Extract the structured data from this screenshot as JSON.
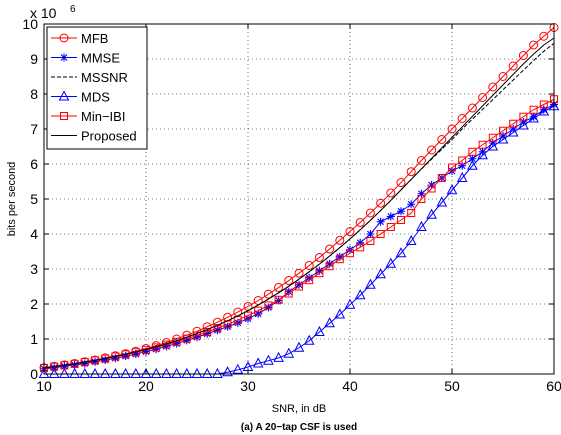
{
  "chart_data": {
    "type": "line",
    "caption": "(a) A 20−tap CSF is used",
    "xlabel": "SNR, in dB",
    "ylabel": "bits per second",
    "y_exponent_label": "x 10",
    "y_exponent": "6",
    "xlim": [
      10,
      60
    ],
    "ylim": [
      0,
      10
    ],
    "x_ticks": [
      10,
      20,
      30,
      40,
      50,
      60
    ],
    "y_ticks": [
      0,
      1,
      2,
      3,
      4,
      5,
      6,
      7,
      8,
      9,
      10
    ],
    "grid": true,
    "legend_position": "top-left",
    "x": [
      10,
      11,
      12,
      13,
      14,
      15,
      16,
      17,
      18,
      19,
      20,
      21,
      22,
      23,
      24,
      25,
      26,
      27,
      28,
      29,
      30,
      31,
      32,
      33,
      34,
      35,
      36,
      37,
      38,
      39,
      40,
      41,
      42,
      43,
      44,
      45,
      46,
      47,
      48,
      49,
      50,
      51,
      52,
      53,
      54,
      55,
      56,
      57,
      58,
      59,
      60
    ],
    "series": [
      {
        "name": "MFB",
        "color": "#ff0000",
        "marker": "circle",
        "dash": "solid",
        "values": [
          0.18,
          0.22,
          0.26,
          0.3,
          0.35,
          0.4,
          0.46,
          0.52,
          0.58,
          0.65,
          0.73,
          0.81,
          0.9,
          1.0,
          1.11,
          1.22,
          1.35,
          1.48,
          1.62,
          1.77,
          1.93,
          2.1,
          2.28,
          2.47,
          2.67,
          2.88,
          3.1,
          3.33,
          3.57,
          3.82,
          4.07,
          4.33,
          4.6,
          4.88,
          5.17,
          5.47,
          5.78,
          6.1,
          6.4,
          6.7,
          7.0,
          7.3,
          7.6,
          7.9,
          8.2,
          8.5,
          8.8,
          9.1,
          9.4,
          9.65,
          9.9
        ]
      },
      {
        "name": "MMSE",
        "color": "#0000ff",
        "marker": "star",
        "dash": "solid",
        "values": [
          0.15,
          0.18,
          0.22,
          0.26,
          0.3,
          0.35,
          0.4,
          0.45,
          0.51,
          0.57,
          0.64,
          0.71,
          0.79,
          0.87,
          0.96,
          1.05,
          1.15,
          1.25,
          1.35,
          1.46,
          1.58,
          1.72,
          1.9,
          2.1,
          2.35,
          2.55,
          2.75,
          2.95,
          3.15,
          3.35,
          3.55,
          3.75,
          4.0,
          4.35,
          4.5,
          4.65,
          4.85,
          5.15,
          5.4,
          5.6,
          5.8,
          5.95,
          6.15,
          6.35,
          6.6,
          6.8,
          7.0,
          7.2,
          7.35,
          7.55,
          7.7
        ]
      },
      {
        "name": "MSSNR",
        "color": "#000000",
        "marker": "none",
        "dash": "dashed",
        "values": [
          0.17,
          0.21,
          0.25,
          0.29,
          0.34,
          0.39,
          0.44,
          0.5,
          0.56,
          0.63,
          0.7,
          0.78,
          0.86,
          0.95,
          1.05,
          1.16,
          1.27,
          1.39,
          1.52,
          1.66,
          1.81,
          1.97,
          2.14,
          2.32,
          2.51,
          2.71,
          2.92,
          3.14,
          3.37,
          3.61,
          3.86,
          4.12,
          4.39,
          4.67,
          4.96,
          5.26,
          5.56,
          5.86,
          6.14,
          6.42,
          6.7,
          7.0,
          7.28,
          7.56,
          7.84,
          8.12,
          8.4,
          8.68,
          8.96,
          9.22,
          9.45
        ]
      },
      {
        "name": "MDS",
        "color": "#0000ff",
        "marker": "triangle",
        "dash": "solid",
        "values": [
          0,
          0,
          0,
          0,
          0,
          0,
          0,
          0,
          0,
          0,
          0,
          0,
          0,
          0,
          0,
          0,
          0,
          0,
          0.05,
          0.12,
          0.2,
          0.3,
          0.38,
          0.46,
          0.58,
          0.75,
          0.95,
          1.2,
          1.45,
          1.7,
          1.98,
          2.25,
          2.55,
          2.85,
          3.15,
          3.45,
          3.8,
          4.2,
          4.55,
          4.9,
          5.25,
          5.6,
          5.95,
          6.25,
          6.5,
          6.7,
          6.9,
          7.1,
          7.3,
          7.5,
          7.65
        ]
      },
      {
        "name": "Min−IBI",
        "color": "#ff0000",
        "marker": "square",
        "dash": "solid",
        "values": [
          0.17,
          0.21,
          0.25,
          0.29,
          0.34,
          0.39,
          0.44,
          0.5,
          0.56,
          0.62,
          0.69,
          0.76,
          0.84,
          0.92,
          1.01,
          1.1,
          1.2,
          1.31,
          1.42,
          1.54,
          1.67,
          1.81,
          1.96,
          2.12,
          2.3,
          2.5,
          2.68,
          2.88,
          3.08,
          3.28,
          3.45,
          3.62,
          3.8,
          4.0,
          4.2,
          4.4,
          4.6,
          5.0,
          5.3,
          5.6,
          5.9,
          6.1,
          6.35,
          6.55,
          6.75,
          6.95,
          7.15,
          7.35,
          7.55,
          7.7,
          7.85
        ]
      },
      {
        "name": "Proposed",
        "color": "#000000",
        "marker": "none",
        "dash": "solid",
        "values": [
          0.17,
          0.21,
          0.25,
          0.29,
          0.34,
          0.39,
          0.44,
          0.5,
          0.56,
          0.63,
          0.7,
          0.78,
          0.86,
          0.95,
          1.05,
          1.16,
          1.27,
          1.39,
          1.52,
          1.66,
          1.81,
          1.97,
          2.14,
          2.32,
          2.51,
          2.71,
          2.92,
          3.14,
          3.37,
          3.61,
          3.86,
          4.12,
          4.39,
          4.67,
          4.96,
          5.26,
          5.56,
          5.86,
          6.16,
          6.46,
          6.76,
          7.06,
          7.36,
          7.66,
          7.96,
          8.26,
          8.56,
          8.86,
          9.14,
          9.4,
          9.6
        ]
      }
    ]
  }
}
